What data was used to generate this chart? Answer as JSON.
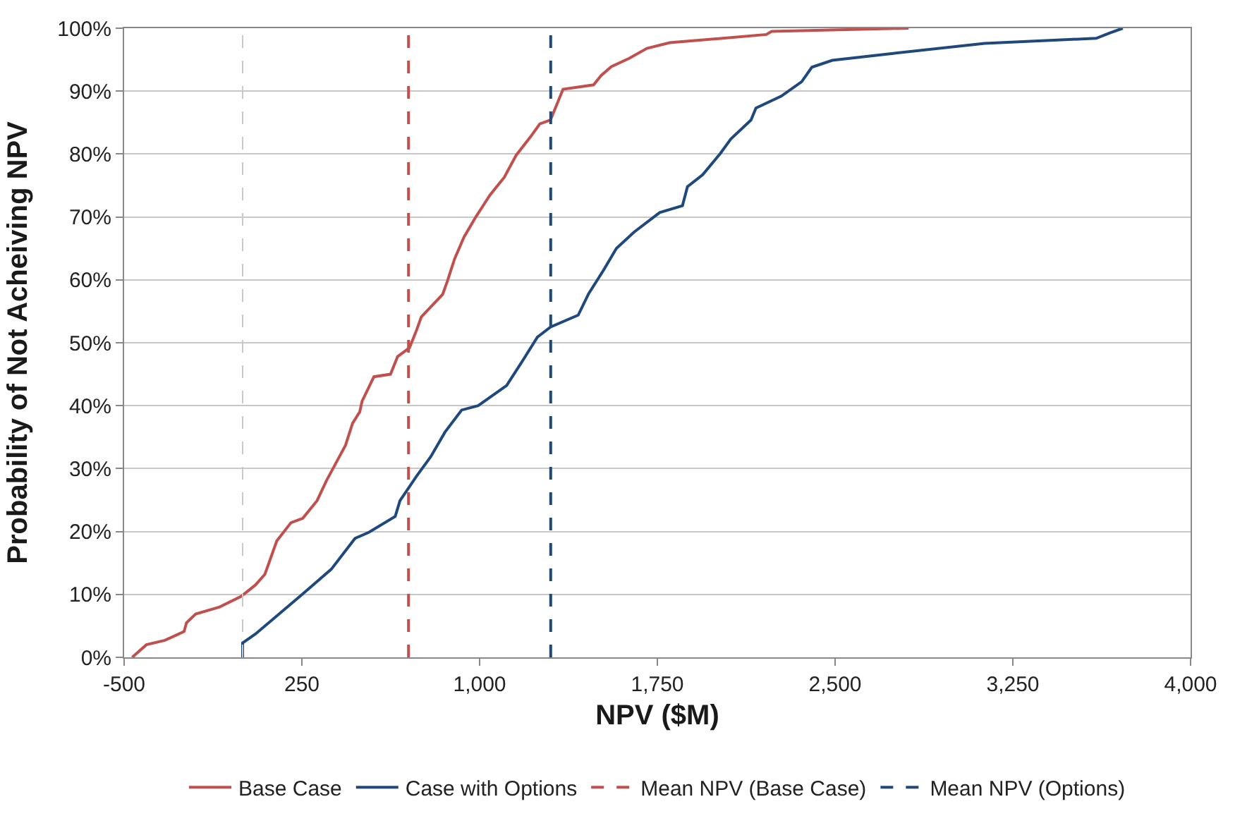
{
  "chart_data": {
    "type": "line",
    "xlabel": "NPV ($M)",
    "ylabel": "Probability of Not Acheiving NPV",
    "xlim": [
      -500,
      4000
    ],
    "xticks": [
      {
        "value": -500,
        "label": "-500"
      },
      {
        "value": 250,
        "label": "250"
      },
      {
        "value": 1000,
        "label": "1,000"
      },
      {
        "value": 1750,
        "label": "1,750"
      },
      {
        "value": 2500,
        "label": "2,500"
      },
      {
        "value": 3250,
        "label": "3,250"
      },
      {
        "value": 4000,
        "label": "4,000"
      }
    ],
    "ylim": [
      0,
      100
    ],
    "yticks": [
      {
        "value": 0,
        "label": "0%"
      },
      {
        "value": 10,
        "label": "10%"
      },
      {
        "value": 20,
        "label": "20%"
      },
      {
        "value": 30,
        "label": "30%"
      },
      {
        "value": 40,
        "label": "40%"
      },
      {
        "value": 50,
        "label": "50%"
      },
      {
        "value": 60,
        "label": "60%"
      },
      {
        "value": 70,
        "label": "70%"
      },
      {
        "value": 80,
        "label": "80%"
      },
      {
        "value": 90,
        "label": "90%"
      },
      {
        "value": 100,
        "label": "100%"
      }
    ],
    "grid": "y",
    "legend": "bottom",
    "marker": "none",
    "line_style": "solid",
    "series": [
      {
        "name": "Base Case",
        "color": "#c0504d",
        "x": [
          -466,
          -406,
          -328,
          -247,
          -237,
          -198,
          -97,
          -6,
          54,
          94,
          144,
          204,
          254,
          314,
          354,
          394,
          434,
          464,
          494,
          504,
          554,
          624,
          654,
          704,
          734,
          754,
          844,
          864,
          894,
          934,
          984,
          1044,
          1104,
          1154,
          1214,
          1254,
          1299,
          1352,
          1481,
          1513,
          1556,
          1631,
          1706,
          1802,
          2210,
          2232,
          2810
        ],
        "values": [
          0,
          2.0,
          2.7,
          4.1,
          5.5,
          6.9,
          8.0,
          9.7,
          11.5,
          13.2,
          18.5,
          21.4,
          22.1,
          24.9,
          28.1,
          30.9,
          33.7,
          37.2,
          39.0,
          40.7,
          44.6,
          45.0,
          47.8,
          49.2,
          52.0,
          54.1,
          57.7,
          59.8,
          63.3,
          66.8,
          70.0,
          73.5,
          76.3,
          79.8,
          82.7,
          84.8,
          85.4,
          90.3,
          91.0,
          92.5,
          93.9,
          95.2,
          96.8,
          97.7,
          99.0,
          99.5,
          100
        ]
      },
      {
        "name": "Case with Options",
        "color": "#1f497d",
        "x": [
          0,
          0,
          54,
          154,
          254,
          374,
          474,
          534,
          644,
          664,
          734,
          794,
          854,
          924,
          994,
          1114,
          1174,
          1244,
          1299,
          1416,
          1460,
          1524,
          1577,
          1652,
          1760,
          1856,
          1877,
          1941,
          2016,
          2060,
          2145,
          2166,
          2273,
          2359,
          2402,
          2488,
          2745,
          3131,
          3602,
          3656,
          3714
        ],
        "values": [
          0,
          2.3,
          3.7,
          6.9,
          10.1,
          14.0,
          18.9,
          19.9,
          22.4,
          24.9,
          28.8,
          31.9,
          35.8,
          39.3,
          40.0,
          43.2,
          46.7,
          50.9,
          52.5,
          54.4,
          57.8,
          61.6,
          65.0,
          67.6,
          70.7,
          71.8,
          74.8,
          76.7,
          80.1,
          82.4,
          85.4,
          87.3,
          89.2,
          91.5,
          93.8,
          94.9,
          96.0,
          97.6,
          98.4,
          99.2,
          100
        ]
      }
    ],
    "ref_lines": [
      {
        "axis": "x",
        "value": 0,
        "label": null,
        "color": "#c8c8c8",
        "line_style": "dashed"
      },
      {
        "axis": "x",
        "value": 700,
        "label": "Mean NPV (Base Case)",
        "color": "#c0504d",
        "line_style": "dashed"
      },
      {
        "axis": "x",
        "value": 1300,
        "label": "Mean NPV (Options)",
        "color": "#1f497d",
        "line_style": "dashed"
      }
    ]
  }
}
